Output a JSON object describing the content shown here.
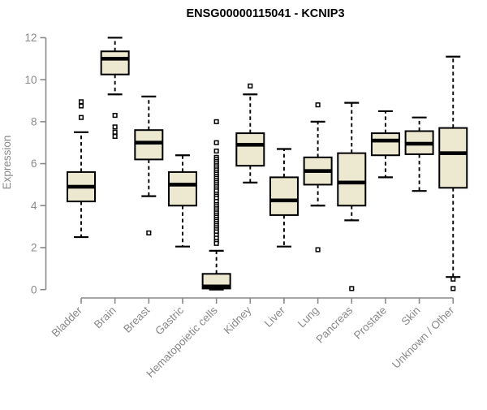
{
  "page": {
    "background": "#ffffff"
  },
  "chart_data": {
    "type": "box",
    "title": "ENSG00000115041 - KCNIP3",
    "ylabel": "Expression",
    "xlabel": "",
    "ylim": [
      0,
      12
    ],
    "yticks": [
      0,
      2,
      4,
      6,
      8,
      10,
      12
    ],
    "grid": false,
    "legend": false,
    "colors": {
      "box_fill": "#EDE8D0",
      "box_border": "#000000",
      "median": "#000000",
      "whisker": "#000000",
      "outlier": "#000000",
      "axis": "#898989",
      "tick_text": "#898989",
      "title_text": "#000000"
    },
    "categories": [
      "Bladder",
      "Brain",
      "Breast",
      "Gastric",
      "Hematopoietic cells",
      "Kidney",
      "Liver",
      "Lung",
      "Pancreas",
      "Prostate",
      "Skin",
      "Unknown / Other"
    ],
    "series": [
      {
        "label": "Bladder",
        "low": 2.5,
        "q1": 4.2,
        "median": 4.9,
        "q3": 5.6,
        "high": 7.5,
        "outliers": [
          8.2,
          8.75,
          8.95
        ]
      },
      {
        "label": "Brain",
        "low": 9.3,
        "q1": 10.25,
        "median": 11.0,
        "q3": 11.35,
        "high": 12.0,
        "outliers": [
          8.3,
          7.75,
          7.5,
          7.3
        ]
      },
      {
        "label": "Breast",
        "low": 4.45,
        "q1": 6.2,
        "median": 7.0,
        "q3": 7.6,
        "high": 9.2,
        "outliers": [
          2.7
        ]
      },
      {
        "label": "Gastric",
        "low": 2.05,
        "q1": 4.0,
        "median": 5.0,
        "q3": 5.6,
        "high": 6.4,
        "outliers": []
      },
      {
        "label": "Hematopoietic cells",
        "low": 0,
        "q1": 0.05,
        "median": 0.15,
        "q3": 0.75,
        "high": 1.85,
        "outliers": [
          8.0,
          7.0,
          6.6,
          6.3,
          6.2,
          6.1,
          6.0,
          5.9,
          5.8,
          5.7,
          5.6,
          5.5,
          5.4,
          5.3,
          5.2,
          5.1,
          5.0,
          4.9,
          4.8,
          4.7,
          4.55,
          4.45,
          4.35,
          4.2,
          4.05,
          3.95,
          3.85,
          3.75,
          3.65,
          3.55,
          3.45,
          3.35,
          3.25,
          3.15,
          3.05,
          2.95,
          2.85,
          2.75,
          2.6,
          2.45,
          2.3,
          2.2
        ]
      },
      {
        "label": "Kidney",
        "low": 5.1,
        "q1": 5.9,
        "median": 6.9,
        "q3": 7.45,
        "high": 9.3,
        "outliers": [
          9.7
        ]
      },
      {
        "label": "Liver",
        "low": 2.05,
        "q1": 3.55,
        "median": 4.25,
        "q3": 5.35,
        "high": 6.7,
        "outliers": []
      },
      {
        "label": "Lung",
        "low": 4.0,
        "q1": 5.0,
        "median": 5.65,
        "q3": 6.3,
        "high": 8.0,
        "outliers": [
          8.8,
          1.9
        ]
      },
      {
        "label": "Pancreas",
        "low": 3.3,
        "q1": 4.0,
        "median": 5.1,
        "q3": 6.5,
        "high": 8.9,
        "outliers": [
          0.05
        ]
      },
      {
        "label": "Prostate",
        "low": 5.35,
        "q1": 6.4,
        "median": 7.1,
        "q3": 7.45,
        "high": 8.5,
        "outliers": []
      },
      {
        "label": "Skin",
        "low": 4.7,
        "q1": 6.45,
        "median": 6.95,
        "q3": 7.55,
        "high": 8.2,
        "outliers": []
      },
      {
        "label": "Unknown / Other",
        "low": 0.6,
        "q1": 4.85,
        "median": 6.5,
        "q3": 7.7,
        "high": 11.1,
        "outliers": [
          0.5,
          0.05
        ]
      }
    ]
  }
}
